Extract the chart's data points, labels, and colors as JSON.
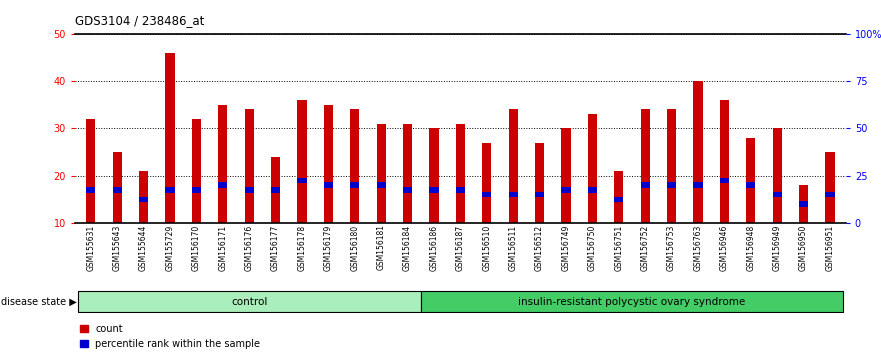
{
  "title": "GDS3104 / 238486_at",
  "samples": [
    "GSM155631",
    "GSM155643",
    "GSM155644",
    "GSM155729",
    "GSM156170",
    "GSM156171",
    "GSM156176",
    "GSM156177",
    "GSM156178",
    "GSM156179",
    "GSM156180",
    "GSM156181",
    "GSM156184",
    "GSM156186",
    "GSM156187",
    "GSM156510",
    "GSM156511",
    "GSM156512",
    "GSM156749",
    "GSM156750",
    "GSM156751",
    "GSM156752",
    "GSM156753",
    "GSM156763",
    "GSM156946",
    "GSM156948",
    "GSM156949",
    "GSM156950",
    "GSM156951"
  ],
  "count_values": [
    32,
    25,
    21,
    46,
    32,
    35,
    34,
    24,
    36,
    35,
    34,
    31,
    31,
    30,
    31,
    27,
    34,
    27,
    30,
    33,
    21,
    34,
    34,
    40,
    36,
    28,
    30,
    18,
    25
  ],
  "percentile_values": [
    17,
    17,
    15,
    17,
    17,
    18,
    17,
    17,
    19,
    18,
    18,
    18,
    17,
    17,
    17,
    16,
    16,
    16,
    17,
    17,
    15,
    18,
    18,
    18,
    19,
    18,
    16,
    14,
    16
  ],
  "control_count": 13,
  "disease_count": 16,
  "control_label": "control",
  "disease_label": "insulin-resistant polycystic ovary syndrome",
  "ylim_left": [
    10,
    50
  ],
  "ylim_right": [
    0,
    100
  ],
  "yticks_left": [
    10,
    20,
    30,
    40,
    50
  ],
  "yticks_right": [
    0,
    25,
    50,
    75,
    100
  ],
  "ytick_labels_right": [
    "0",
    "25",
    "50",
    "75",
    "100%"
  ],
  "bar_color": "#cc0000",
  "percentile_color": "#0000cc",
  "bg_color": "#ffffff",
  "control_bg": "#aaeebb",
  "disease_bg": "#44cc66",
  "legend_count_label": "count",
  "legend_percentile_label": "percentile rank within the sample",
  "disease_state_label": "disease state"
}
